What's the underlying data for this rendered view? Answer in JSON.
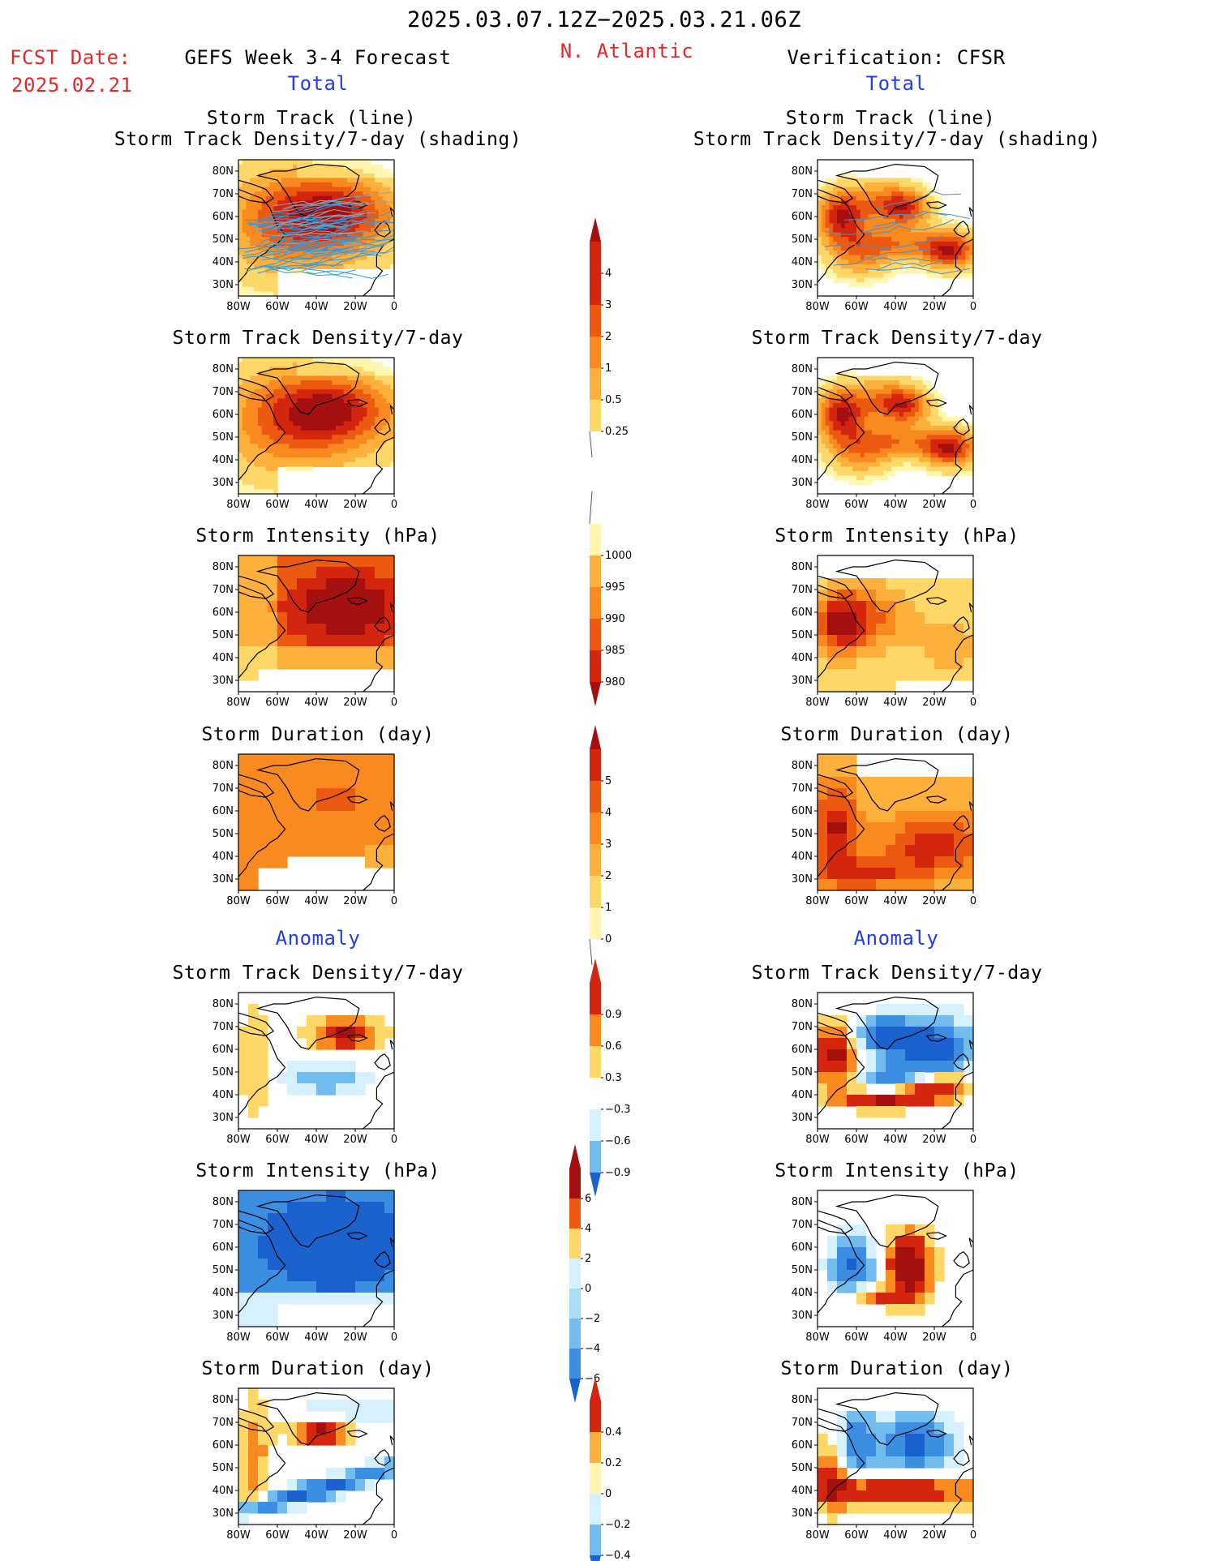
{
  "header": {
    "period": "2025.03.07.12Z−2025.03.21.06Z",
    "region": "N. Atlantic",
    "fcst_label": "FCST Date:",
    "fcst_date": "2025.02.21",
    "left_title": "GEFS Week 3-4 Forecast",
    "right_title": "Verification: CFSR",
    "total_label": "Total",
    "anomaly_label": "Anomaly"
  },
  "axes": {
    "lat_ticks": [
      "80N",
      "70N",
      "60N",
      "50N",
      "40N",
      "30N"
    ],
    "lon_ticks": [
      "80W",
      "60W",
      "40W",
      "20W",
      "0"
    ]
  },
  "panels": {
    "track_line_title1": "Storm Track (line)",
    "track_line_title2": "Storm Track Density/7-day (shading)",
    "density_title": "Storm Track Density/7-day",
    "intensity_title": "Storm Intensity (hPa)",
    "duration_title": "Storm Duration (day)"
  },
  "colorbars": {
    "density": [
      "4",
      "3",
      "2",
      "1",
      "0.5",
      "0.25"
    ],
    "intensity": [
      "1000",
      "995",
      "990",
      "985",
      "980"
    ],
    "duration": [
      "5",
      "4",
      "3",
      "2",
      "1",
      "0"
    ],
    "density_anom": [
      "0.9",
      "0.6",
      "0.3",
      "−0.3",
      "−0.6",
      "−0.9"
    ],
    "intensity_anom": [
      "6",
      "4",
      "2",
      "0",
      "−2",
      "−4",
      "−6"
    ],
    "duration_anom": [
      "0.4",
      "0.2",
      "0",
      "−0.2",
      "−0.4"
    ]
  },
  "colors": {
    "title_red": "#e8262a",
    "title_blue": "#1f3cf0",
    "warm": [
      "#fff7b0",
      "#fdd768",
      "#fdb03c",
      "#f98a1f",
      "#ec5a12",
      "#d4260f",
      "#a40f0f"
    ],
    "cool": [
      "#d6f1fb",
      "#a9ddf5",
      "#72bdee",
      "#3c8ee3",
      "#1b62cf"
    ]
  },
  "chart_data": [
    {
      "id": "fcst-track",
      "type": "heatmap",
      "title": "Storm Track (line) / Storm Track Density/7-day (shading)",
      "source": "GEFS Week 3-4 Forecast",
      "region": "N. Atlantic",
      "lat_range": [
        25,
        85
      ],
      "lon_range": [
        -80,
        0
      ]
    },
    {
      "id": "cfsr-track",
      "type": "heatmap",
      "title": "Storm Track (line) / Storm Track Density/7-day (shading)",
      "source": "Verification: CFSR",
      "lat_range": [
        25,
        85
      ],
      "lon_range": [
        -80,
        0
      ]
    },
    {
      "id": "fcst-density",
      "type": "heatmap",
      "title": "Storm Track Density/7-day",
      "levels": [
        0.25,
        0.5,
        1,
        2,
        3,
        4
      ]
    },
    {
      "id": "cfsr-density",
      "type": "heatmap",
      "title": "Storm Track Density/7-day",
      "levels": [
        0.25,
        0.5,
        1,
        2,
        3,
        4
      ]
    },
    {
      "id": "fcst-intensity",
      "type": "heatmap",
      "title": "Storm Intensity (hPa)",
      "levels": [
        1000,
        995,
        990,
        985,
        980
      ]
    },
    {
      "id": "cfsr-intensity",
      "type": "heatmap",
      "title": "Storm Intensity (hPa)",
      "levels": [
        1000,
        995,
        990,
        985,
        980
      ]
    },
    {
      "id": "fcst-duration",
      "type": "heatmap",
      "title": "Storm Duration (day)",
      "levels": [
        0,
        1,
        2,
        3,
        4,
        5
      ]
    },
    {
      "id": "cfsr-duration",
      "type": "heatmap",
      "title": "Storm Duration (day)",
      "levels": [
        0,
        1,
        2,
        3,
        4,
        5
      ]
    },
    {
      "id": "fcst-density-anom",
      "type": "heatmap",
      "title": "Storm Track Density/7-day",
      "levels": [
        -0.9,
        -0.6,
        -0.3,
        0.3,
        0.6,
        0.9
      ]
    },
    {
      "id": "cfsr-density-anom",
      "type": "heatmap",
      "title": "Storm Track Density/7-day",
      "levels": [
        -0.9,
        -0.6,
        -0.3,
        0.3,
        0.6,
        0.9
      ]
    },
    {
      "id": "fcst-intensity-anom",
      "type": "heatmap",
      "title": "Storm Intensity (hPa)",
      "levels": [
        -6,
        -4,
        -2,
        0,
        2,
        4,
        6
      ]
    },
    {
      "id": "cfsr-intensity-anom",
      "type": "heatmap",
      "title": "Storm Intensity (hPa)",
      "levels": [
        -6,
        -4,
        -2,
        0,
        2,
        4,
        6
      ]
    },
    {
      "id": "fcst-duration-anom",
      "type": "heatmap",
      "title": "Storm Duration (day)",
      "levels": [
        -0.4,
        -0.2,
        0,
        0.2,
        0.4
      ]
    },
    {
      "id": "cfsr-duration-anom",
      "type": "heatmap",
      "title": "Storm Duration (day)",
      "levels": [
        -0.4,
        -0.2,
        0,
        0.2,
        0.4
      ]
    }
  ]
}
